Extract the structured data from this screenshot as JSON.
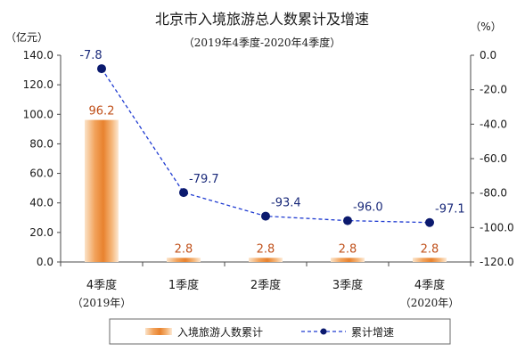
{
  "chart_data": {
    "type": "bar+line",
    "title": "北京市入境旅游总人数累计及增速",
    "subtitle": "（2019年4季度-2020年4季度）",
    "y_left_unit": "（亿元）",
    "y_right_unit": "（%）",
    "categories": [
      "4季度",
      "1季度",
      "2季度",
      "3季度",
      "4季度"
    ],
    "category_years": [
      "（2019年）",
      "",
      "",
      "",
      "（2020年）"
    ],
    "y_left_ticks": [
      "0.0",
      "20.0",
      "40.0",
      "60.0",
      "80.0",
      "100.0",
      "120.0",
      "140.0"
    ],
    "y_right_ticks": [
      "-120.0",
      "-100.0",
      "-80.0",
      "-60.0",
      "-40.0",
      "-20.0",
      "0.0"
    ],
    "ylim_left": [
      0,
      140
    ],
    "ylim_right": [
      -120,
      0
    ],
    "series": [
      {
        "name": "入境旅游人数累计",
        "kind": "bar",
        "axis": "left",
        "values": [
          96.2,
          2.8,
          2.8,
          2.8,
          2.8
        ],
        "labels": [
          "96.2",
          "2.8",
          "2.8",
          "2.8",
          "2.8"
        ],
        "color": "#e8822e"
      },
      {
        "name": "累计增速",
        "kind": "line",
        "axis": "right",
        "values": [
          -7.8,
          -79.7,
          -93.4,
          -96.0,
          -97.1
        ],
        "labels": [
          "-7.8",
          "-79.7",
          "-93.4",
          "-96.0",
          "-97.1"
        ],
        "color": "#1f3bd1",
        "marker_color": "#0b1a6e"
      }
    ],
    "grid": false,
    "legend": "bottom"
  }
}
